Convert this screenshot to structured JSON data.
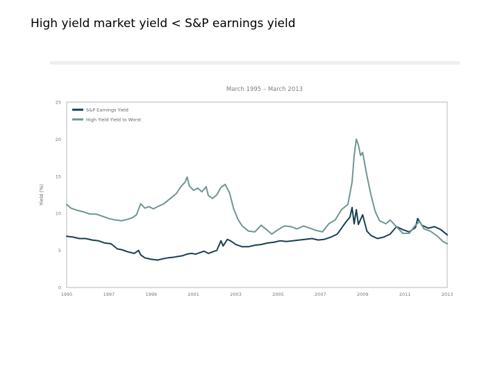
{
  "slide": {
    "title": "High yield market yield < S&P earnings yield"
  },
  "chart_data": {
    "type": "line",
    "title": "",
    "subtitle": "March 1995 – March 2013",
    "ylabel": "Yield (%)",
    "xlabel": "",
    "ylim": [
      0,
      25
    ],
    "xlim": [
      1995.2,
      2013.2
    ],
    "yticks": [
      0,
      5,
      10,
      15,
      20,
      25
    ],
    "xtick_labels": [
      "1995",
      "1997",
      "1999",
      "2001",
      "2003",
      "2005",
      "2007",
      "2009",
      "2011",
      "2013"
    ],
    "grid": false,
    "legend_position": "top-left",
    "series": [
      {
        "name": "S&P Earnings Yield",
        "color": "#173f52",
        "points": [
          [
            1995.2,
            6.9
          ],
          [
            1995.5,
            6.8
          ],
          [
            1995.8,
            6.6
          ],
          [
            1996.1,
            6.6
          ],
          [
            1996.4,
            6.4
          ],
          [
            1996.7,
            6.3
          ],
          [
            1997.0,
            6.0
          ],
          [
            1997.3,
            5.9
          ],
          [
            1997.6,
            5.2
          ],
          [
            1997.8,
            5.1
          ],
          [
            1998.1,
            4.8
          ],
          [
            1998.4,
            4.6
          ],
          [
            1998.6,
            5.0
          ],
          [
            1998.7,
            4.4
          ],
          [
            1998.9,
            4.0
          ],
          [
            1999.2,
            3.8
          ],
          [
            1999.5,
            3.7
          ],
          [
            1999.8,
            3.9
          ],
          [
            2000.0,
            4.0
          ],
          [
            2000.3,
            4.1
          ],
          [
            2000.5,
            4.2
          ],
          [
            2000.7,
            4.3
          ],
          [
            2000.9,
            4.5
          ],
          [
            2001.1,
            4.6
          ],
          [
            2001.3,
            4.5
          ],
          [
            2001.5,
            4.7
          ],
          [
            2001.7,
            4.9
          ],
          [
            2001.9,
            4.6
          ],
          [
            2002.1,
            4.8
          ],
          [
            2002.3,
            5.0
          ],
          [
            2002.5,
            6.3
          ],
          [
            2002.6,
            5.6
          ],
          [
            2002.8,
            6.5
          ],
          [
            2003.0,
            6.2
          ],
          [
            2003.2,
            5.8
          ],
          [
            2003.5,
            5.5
          ],
          [
            2003.8,
            5.5
          ],
          [
            2004.1,
            5.7
          ],
          [
            2004.4,
            5.8
          ],
          [
            2004.7,
            6.0
          ],
          [
            2005.0,
            6.1
          ],
          [
            2005.3,
            6.3
          ],
          [
            2005.6,
            6.2
          ],
          [
            2005.9,
            6.3
          ],
          [
            2006.2,
            6.4
          ],
          [
            2006.5,
            6.5
          ],
          [
            2006.8,
            6.6
          ],
          [
            2007.1,
            6.4
          ],
          [
            2007.4,
            6.5
          ],
          [
            2007.7,
            6.8
          ],
          [
            2008.0,
            7.2
          ],
          [
            2008.2,
            8.0
          ],
          [
            2008.4,
            8.8
          ],
          [
            2008.6,
            9.5
          ],
          [
            2008.7,
            10.8
          ],
          [
            2008.8,
            8.6
          ],
          [
            2008.9,
            10.5
          ],
          [
            2009.0,
            8.5
          ],
          [
            2009.2,
            9.8
          ],
          [
            2009.4,
            7.6
          ],
          [
            2009.6,
            7.0
          ],
          [
            2009.9,
            6.6
          ],
          [
            2010.2,
            6.8
          ],
          [
            2010.5,
            7.2
          ],
          [
            2010.8,
            8.2
          ],
          [
            2011.1,
            7.8
          ],
          [
            2011.4,
            7.5
          ],
          [
            2011.7,
            8.1
          ],
          [
            2011.8,
            9.3
          ],
          [
            2012.0,
            8.4
          ],
          [
            2012.3,
            8.0
          ],
          [
            2012.6,
            8.2
          ],
          [
            2012.9,
            7.8
          ],
          [
            2013.2,
            7.1
          ]
        ]
      },
      {
        "name": "High Yield Yield to Worst",
        "color": "#6f9494",
        "points": [
          [
            1995.2,
            11.2
          ],
          [
            1995.4,
            10.7
          ],
          [
            1995.7,
            10.4
          ],
          [
            1996.0,
            10.2
          ],
          [
            1996.3,
            9.9
          ],
          [
            1996.6,
            9.9
          ],
          [
            1996.9,
            9.6
          ],
          [
            1997.2,
            9.3
          ],
          [
            1997.5,
            9.1
          ],
          [
            1997.8,
            9.0
          ],
          [
            1998.1,
            9.2
          ],
          [
            1998.3,
            9.4
          ],
          [
            1998.5,
            9.8
          ],
          [
            1998.7,
            11.3
          ],
          [
            1998.9,
            10.7
          ],
          [
            1999.1,
            10.9
          ],
          [
            1999.3,
            10.6
          ],
          [
            1999.5,
            10.9
          ],
          [
            1999.8,
            11.3
          ],
          [
            2000.1,
            12.0
          ],
          [
            2000.4,
            12.7
          ],
          [
            2000.6,
            13.6
          ],
          [
            2000.8,
            14.2
          ],
          [
            2000.9,
            14.9
          ],
          [
            2001.0,
            13.7
          ],
          [
            2001.2,
            13.1
          ],
          [
            2001.4,
            13.4
          ],
          [
            2001.6,
            12.9
          ],
          [
            2001.8,
            13.6
          ],
          [
            2001.9,
            12.4
          ],
          [
            2002.1,
            12.0
          ],
          [
            2002.3,
            12.5
          ],
          [
            2002.5,
            13.5
          ],
          [
            2002.7,
            13.9
          ],
          [
            2002.9,
            12.8
          ],
          [
            2003.1,
            10.6
          ],
          [
            2003.3,
            9.2
          ],
          [
            2003.5,
            8.3
          ],
          [
            2003.8,
            7.6
          ],
          [
            2004.1,
            7.5
          ],
          [
            2004.4,
            8.4
          ],
          [
            2004.7,
            7.7
          ],
          [
            2004.9,
            7.2
          ],
          [
            2005.2,
            7.8
          ],
          [
            2005.5,
            8.3
          ],
          [
            2005.8,
            8.2
          ],
          [
            2006.1,
            7.9
          ],
          [
            2006.4,
            8.3
          ],
          [
            2006.7,
            8.0
          ],
          [
            2007.0,
            7.7
          ],
          [
            2007.3,
            7.5
          ],
          [
            2007.6,
            8.6
          ],
          [
            2007.9,
            9.1
          ],
          [
            2008.2,
            10.5
          ],
          [
            2008.5,
            11.2
          ],
          [
            2008.7,
            14.2
          ],
          [
            2008.8,
            17.8
          ],
          [
            2008.9,
            20.0
          ],
          [
            2009.0,
            19.2
          ],
          [
            2009.1,
            17.8
          ],
          [
            2009.2,
            18.2
          ],
          [
            2009.4,
            15.1
          ],
          [
            2009.6,
            12.4
          ],
          [
            2009.8,
            10.2
          ],
          [
            2010.0,
            9.0
          ],
          [
            2010.3,
            8.6
          ],
          [
            2010.5,
            9.1
          ],
          [
            2010.8,
            8.2
          ],
          [
            2011.1,
            7.3
          ],
          [
            2011.4,
            7.3
          ],
          [
            2011.7,
            8.4
          ],
          [
            2011.9,
            8.9
          ],
          [
            2012.1,
            7.9
          ],
          [
            2012.4,
            7.6
          ],
          [
            2012.7,
            7.0
          ],
          [
            2013.0,
            6.2
          ],
          [
            2013.2,
            5.9
          ]
        ]
      }
    ]
  }
}
